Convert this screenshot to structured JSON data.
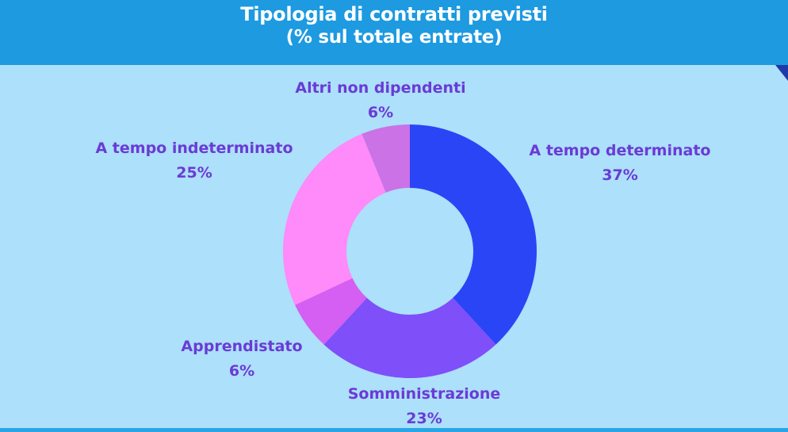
{
  "header": {
    "title": "Tipologia di contratti previsti",
    "subtitle": "(% sul totale entrate)"
  },
  "colors": {
    "header_bg": "#1d9ae0",
    "page_bg": "#ade0fb",
    "label_text": "#6a3bd6"
  },
  "chart_data": {
    "type": "pie",
    "title": "Tipologia di contratti previsti",
    "subtitle": "(% sul totale entrate)",
    "donut": true,
    "slices": [
      {
        "label": "A tempo determinato",
        "value": 37,
        "value_label": "37%",
        "color": "#2a45f6"
      },
      {
        "label": "Somministrazione",
        "value": 23,
        "value_label": "23%",
        "color": "#7f4ff9"
      },
      {
        "label": "Apprendistato",
        "value": 6,
        "value_label": "6%",
        "color": "#d55ef3"
      },
      {
        "label": "A tempo indeterminato",
        "value": 25,
        "value_label": "25%",
        "color": "#ff8af9"
      },
      {
        "label": "Altri non dipendenti",
        "value": 6,
        "value_label": "6%",
        "color": "#cb72e6"
      }
    ]
  }
}
